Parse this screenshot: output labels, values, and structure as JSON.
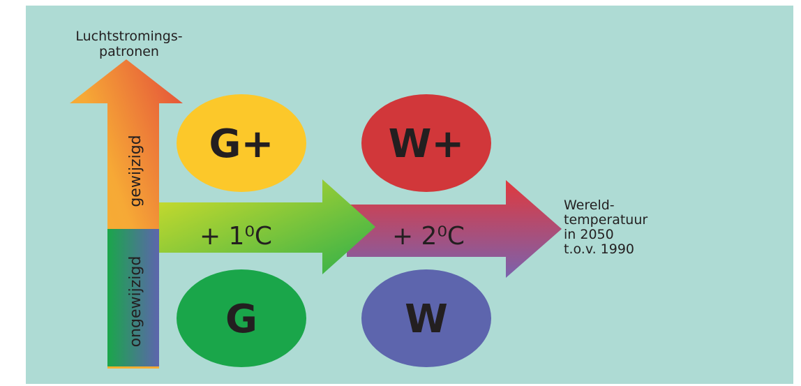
{
  "vertical_axis": {
    "label_lines": [
      "Luchtstromings-",
      "patronen"
    ],
    "upper": "gewijzigd",
    "lower": "ongewijzigd"
  },
  "horizontal_axis": {
    "steps": [
      "+ 1⁰C",
      "+ 2⁰C"
    ],
    "label_lines": [
      "Wereld-",
      "temperatuur",
      "in 2050",
      "t.o.v. 1990"
    ]
  },
  "scenarios": [
    "G+",
    "W+",
    "G",
    "W"
  ]
}
